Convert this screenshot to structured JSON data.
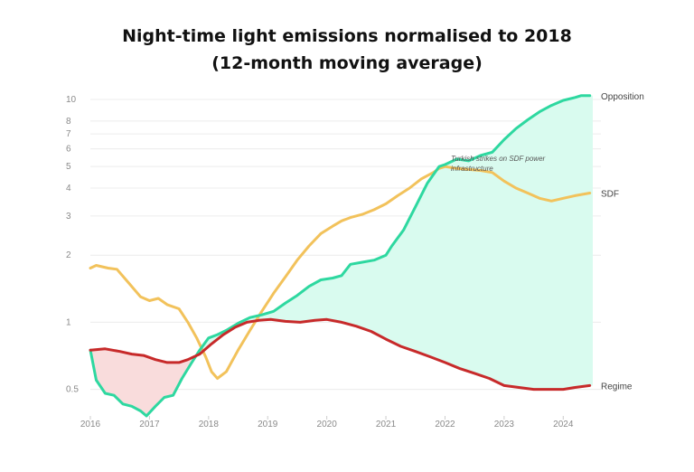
{
  "chart_data": {
    "type": "line",
    "title": "Night-time light emissions normalised to 2018",
    "subtitle": "(12-month moving average)",
    "xlabel": "",
    "ylabel": "",
    "y_scale": "log",
    "xlim": [
      2016.0,
      2024.5
    ],
    "ylim": [
      0.38,
      11.5
    ],
    "y_ticks": [
      0.5,
      1,
      2,
      3,
      4,
      5,
      6,
      7,
      8,
      10
    ],
    "x_ticks": [
      2016,
      2017,
      2018,
      2019,
      2020,
      2021,
      2022,
      2023,
      2024
    ],
    "grid": true,
    "legend": "end-of-line labels",
    "annotation": {
      "text_line1": "Turkish strikes on SDF power",
      "text_line2": "infrastructure",
      "x": 2022.1,
      "y": 5.3
    },
    "series": [
      {
        "name": "Opposition",
        "color": "#2ed8a0",
        "x": [
          2016.0,
          2016.1,
          2016.25,
          2016.4,
          2016.55,
          2016.7,
          2016.85,
          2016.95,
          2017.1,
          2017.25,
          2017.4,
          2017.55,
          2017.7,
          2017.85,
          2018.0,
          2018.15,
          2018.3,
          2018.5,
          2018.7,
          2018.9,
          2019.1,
          2019.3,
          2019.5,
          2019.7,
          2019.9,
          2020.1,
          2020.25,
          2020.4,
          2020.6,
          2020.8,
          2021.0,
          2021.1,
          2021.3,
          2021.5,
          2021.7,
          2021.9,
          2022.0,
          2022.2,
          2022.4,
          2022.6,
          2022.8,
          2023.0,
          2023.2,
          2023.4,
          2023.6,
          2023.8,
          2024.0,
          2024.2,
          2024.3,
          2024.45
        ],
        "values": [
          0.75,
          0.55,
          0.48,
          0.47,
          0.43,
          0.42,
          0.4,
          0.38,
          0.42,
          0.46,
          0.47,
          0.56,
          0.65,
          0.75,
          0.85,
          0.88,
          0.92,
          0.99,
          1.05,
          1.08,
          1.12,
          1.22,
          1.32,
          1.45,
          1.55,
          1.58,
          1.62,
          1.82,
          1.86,
          1.9,
          2.0,
          2.2,
          2.6,
          3.3,
          4.2,
          5.0,
          5.1,
          5.4,
          5.3,
          5.6,
          5.8,
          6.6,
          7.4,
          8.1,
          8.8,
          9.4,
          9.9,
          10.2,
          10.4,
          10.4
        ]
      },
      {
        "name": "SDF",
        "color": "#f2c25b",
        "x": [
          2016.0,
          2016.1,
          2016.3,
          2016.45,
          2016.65,
          2016.85,
          2017.0,
          2017.15,
          2017.3,
          2017.5,
          2017.65,
          2017.8,
          2017.95,
          2018.05,
          2018.15,
          2018.3,
          2018.5,
          2018.7,
          2018.9,
          2019.1,
          2019.3,
          2019.5,
          2019.7,
          2019.9,
          2020.1,
          2020.25,
          2020.4,
          2020.6,
          2020.8,
          2021.0,
          2021.2,
          2021.4,
          2021.6,
          2021.8,
          2021.9,
          2022.0,
          2022.2,
          2022.4,
          2022.6,
          2022.8,
          2023.0,
          2023.2,
          2023.4,
          2023.6,
          2023.8,
          2024.0,
          2024.2,
          2024.45
        ],
        "values": [
          1.75,
          1.8,
          1.75,
          1.73,
          1.5,
          1.3,
          1.25,
          1.28,
          1.2,
          1.15,
          1.0,
          0.85,
          0.7,
          0.6,
          0.56,
          0.6,
          0.75,
          0.92,
          1.12,
          1.35,
          1.6,
          1.9,
          2.2,
          2.5,
          2.7,
          2.85,
          2.95,
          3.05,
          3.2,
          3.4,
          3.7,
          4.0,
          4.4,
          4.7,
          4.9,
          5.0,
          4.9,
          4.85,
          4.8,
          4.7,
          4.3,
          4.0,
          3.8,
          3.6,
          3.5,
          3.6,
          3.7,
          3.8
        ]
      },
      {
        "name": "Regime",
        "color": "#c72a2a",
        "x": [
          2016.0,
          2016.25,
          2016.5,
          2016.7,
          2016.9,
          2017.1,
          2017.3,
          2017.5,
          2017.65,
          2017.85,
          2018.05,
          2018.25,
          2018.45,
          2018.65,
          2018.85,
          2019.05,
          2019.3,
          2019.55,
          2019.8,
          2020.0,
          2020.25,
          2020.5,
          2020.75,
          2021.0,
          2021.25,
          2021.5,
          2021.75,
          2022.0,
          2022.25,
          2022.5,
          2022.75,
          2023.0,
          2023.25,
          2023.5,
          2023.75,
          2024.0,
          2024.2,
          2024.45
        ],
        "values": [
          0.75,
          0.76,
          0.74,
          0.72,
          0.71,
          0.68,
          0.66,
          0.66,
          0.68,
          0.72,
          0.8,
          0.88,
          0.95,
          1.0,
          1.02,
          1.03,
          1.01,
          1.0,
          1.02,
          1.03,
          1.0,
          0.96,
          0.91,
          0.84,
          0.78,
          0.74,
          0.7,
          0.66,
          0.62,
          0.59,
          0.56,
          0.52,
          0.51,
          0.5,
          0.5,
          0.5,
          0.51,
          0.52
        ]
      }
    ]
  }
}
